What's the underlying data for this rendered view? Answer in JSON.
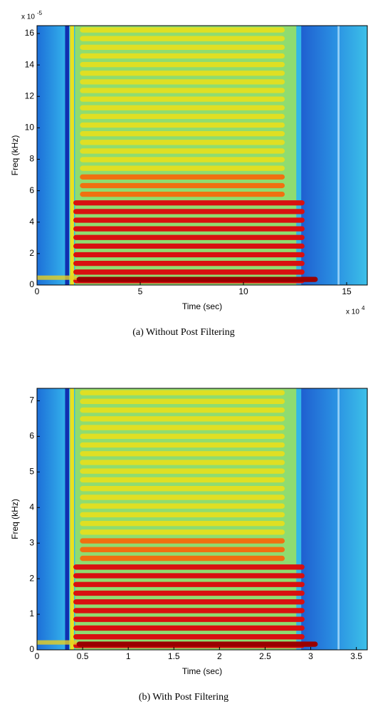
{
  "chart_data": [
    {
      "type": "spectrogram",
      "xlabel": "Time (sec)",
      "ylabel": "Freq (kHz)",
      "caption": "(a) Without Post Filtering",
      "xlim": [
        0,
        16
      ],
      "xticks": [
        0,
        5,
        10,
        15
      ],
      "ylim": [
        0,
        16.5
      ],
      "yticks": [
        0,
        2,
        4,
        6,
        8,
        10,
        12,
        14,
        16
      ],
      "x_scale_label": {
        "text": "x 10",
        "exponent": "4"
      },
      "y_scale_label": {
        "text": "x 10",
        "exponent": "-5"
      }
    },
    {
      "type": "spectrogram",
      "xlabel": "Time (sec)",
      "ylabel": "Freq (kHz)",
      "caption": "(b) With Post Filtering",
      "xlim": [
        0,
        3.62
      ],
      "xticks": [
        0,
        0.5,
        1,
        1.5,
        2,
        2.5,
        3,
        3.5
      ],
      "ylim": [
        0,
        7.35
      ],
      "yticks": [
        0,
        1,
        2,
        3,
        4,
        5,
        6,
        7
      ]
    }
  ]
}
